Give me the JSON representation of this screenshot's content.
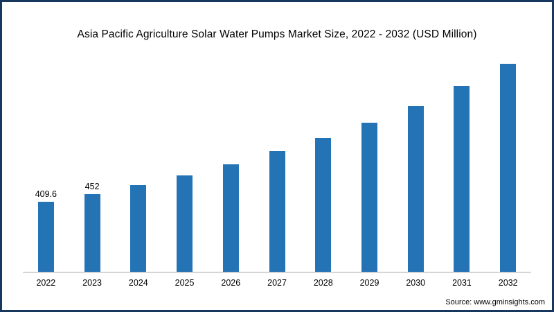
{
  "chart_data": {
    "type": "bar",
    "title": "Asia Pacific Agriculture Solar Water Pumps Market Size, 2022 - 2032 (USD Million)",
    "categories": [
      "2022",
      "2023",
      "2024",
      "2025",
      "2026",
      "2027",
      "2028",
      "2029",
      "2030",
      "2031",
      "2032"
    ],
    "values": [
      409.6,
      452,
      505,
      562,
      627,
      702,
      782,
      870,
      966,
      1084,
      1215
    ],
    "data_labels": [
      "409.6",
      "452",
      "",
      "",
      "",
      "",
      "",
      "",
      "",
      "",
      ""
    ],
    "xlabel": "",
    "ylabel": "",
    "ylim": [
      0,
      1250
    ],
    "grid": false,
    "legend": false,
    "bar_color": "#2473b5",
    "axis_line_color": "#a6a6a6",
    "frame_border_color": "#17375e"
  },
  "source": "Source: www.gminsights.com"
}
